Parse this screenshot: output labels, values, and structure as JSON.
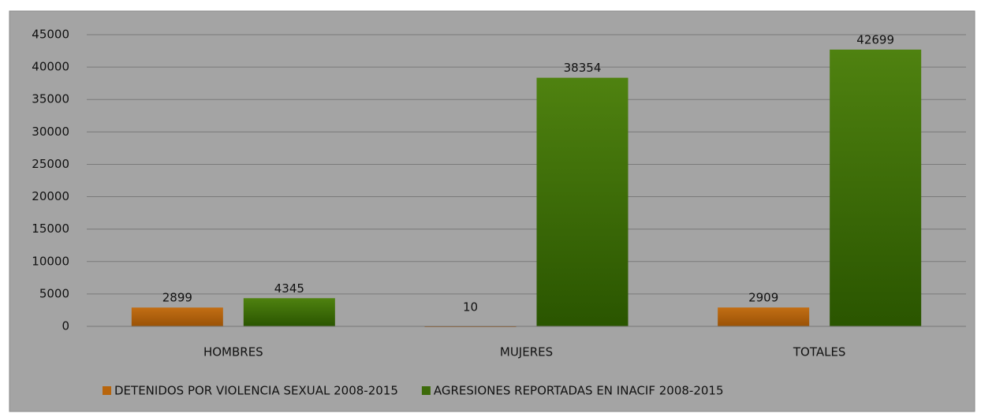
{
  "chart_data": {
    "type": "bar",
    "categories": [
      "HOMBRES",
      "MUJERES",
      "TOTALES"
    ],
    "series": [
      {
        "name": "DETENIDOS POR VIOLENCIA SEXUAL 2008-2015",
        "color": "#b8650c",
        "values": [
          2899,
          10,
          2909
        ]
      },
      {
        "name": "AGRESIONES REPORTADAS EN INACIF 2008-2015",
        "color": "#3d6b0a",
        "values": [
          4345,
          38354,
          42699
        ]
      }
    ],
    "ylim": [
      0,
      45000
    ],
    "yticks": [
      0,
      5000,
      10000,
      15000,
      20000,
      25000,
      30000,
      35000,
      40000,
      45000
    ],
    "grid": true,
    "legend": "bottom"
  }
}
